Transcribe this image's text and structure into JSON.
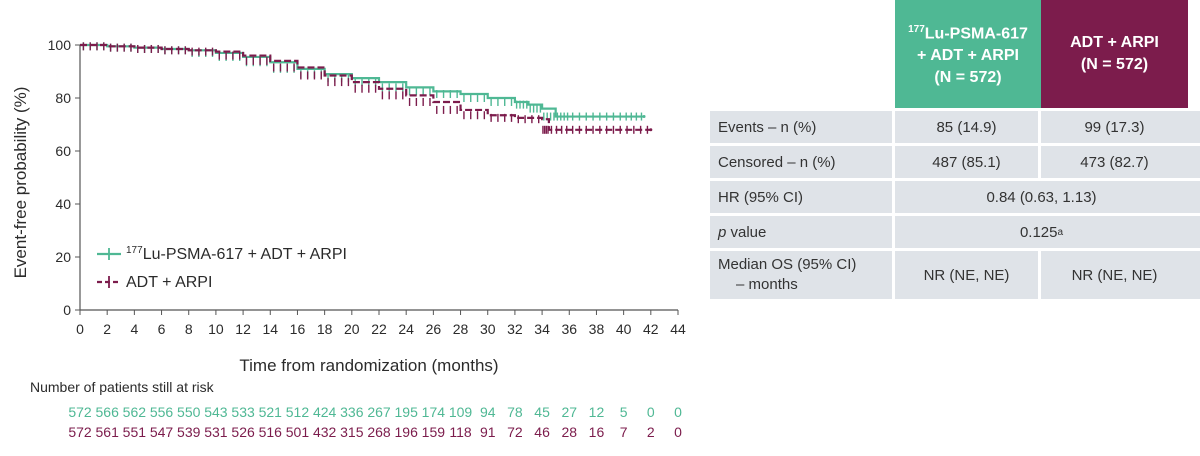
{
  "chart_data": {
    "type": "line",
    "title": "",
    "xlabel": "Time from randomization (months)",
    "ylabel": "Event-free probability (%)",
    "xlim": [
      0,
      44
    ],
    "ylim": [
      0,
      100
    ],
    "xticks": [
      "0",
      "2",
      "4",
      "6",
      "8",
      "10",
      "12",
      "14",
      "16",
      "18",
      "20",
      "22",
      "24",
      "26",
      "28",
      "30",
      "32",
      "34",
      "36",
      "38",
      "40",
      "42",
      "44"
    ],
    "yticks": [
      "0",
      "20",
      "40",
      "60",
      "80",
      "100"
    ],
    "legend_position": "bottom-left",
    "series": [
      {
        "name_sup": "177",
        "name": "Lu-PSMA-617 + ADT + ARPI",
        "color": "#4fb894",
        "style": "solid",
        "x": [
          0,
          2,
          4,
          6,
          8,
          10,
          12,
          14,
          16,
          18,
          20,
          22,
          24,
          26,
          28,
          30,
          32,
          33,
          34,
          35,
          36,
          38,
          40,
          41.5
        ],
        "y": [
          100,
          99.5,
          99,
          98.5,
          98,
          97,
          95.5,
          93.5,
          91,
          89,
          87.5,
          86,
          84,
          82.5,
          81.5,
          80,
          78.5,
          77.5,
          76,
          73,
          73,
          73,
          73,
          73
        ]
      },
      {
        "name": "ADT + ARPI",
        "color": "#7c1c4c",
        "style": "dashed",
        "x": [
          0,
          2,
          4,
          6,
          8,
          10,
          12,
          14,
          16,
          18,
          20,
          22,
          24,
          26,
          28,
          30,
          32,
          34,
          34.5,
          36,
          38,
          40,
          42
        ],
        "y": [
          100,
          99.5,
          99,
          98.5,
          98,
          97.5,
          96,
          94,
          91.5,
          88.5,
          86,
          83.5,
          81,
          78.5,
          75.5,
          73.5,
          72.5,
          72,
          68,
          68,
          68,
          68,
          68
        ]
      }
    ],
    "at_risk": {
      "title": "Number of patients still at risk",
      "rows": [
        {
          "color": "#4fb894",
          "values": [
            "572",
            "566",
            "562",
            "556",
            "550",
            "543",
            "533",
            "521",
            "512",
            "424",
            "336",
            "267",
            "195",
            "174",
            "109",
            "94",
            "78",
            "45",
            "27",
            "12",
            "5",
            "0",
            "0"
          ]
        },
        {
          "color": "#7c1c4c",
          "values": [
            "572",
            "561",
            "551",
            "547",
            "539",
            "531",
            "526",
            "516",
            "501",
            "432",
            "315",
            "268",
            "196",
            "159",
            "118",
            "91",
            "72",
            "46",
            "28",
            "16",
            "7",
            "2",
            "0"
          ]
        }
      ]
    }
  },
  "table": {
    "headers": {
      "lu_sup": "177",
      "lu_line1": "Lu-PSMA-617",
      "lu_line2": "+ ADT + ARPI",
      "lu_line3": "(N = 572)",
      "adt_line1": "ADT + ARPI",
      "adt_line2": "(N = 572)"
    },
    "colors": {
      "lu": "#4fb894",
      "adt": "#7c1c4c",
      "row_bg": "#dfe3e8"
    },
    "rows": {
      "events": {
        "label": "Events – n (%)",
        "lu": "85 (14.9)",
        "adt": "99 (17.3)"
      },
      "censored": {
        "label": "Censored – n (%)",
        "lu": "487 (85.1)",
        "adt": "473 (82.7)"
      },
      "hr": {
        "label": "HR (95% CI)",
        "value": "0.84 (0.63, 1.13)"
      },
      "pvalue": {
        "label_italic": "p",
        "label_rest": " value",
        "value": "0.125",
        "value_sup": "a"
      },
      "median": {
        "label_line1": "Median OS (95% CI)",
        "label_line2": "– months",
        "lu": "NR (NE, NE)",
        "adt": "NR (NE, NE)"
      }
    }
  }
}
